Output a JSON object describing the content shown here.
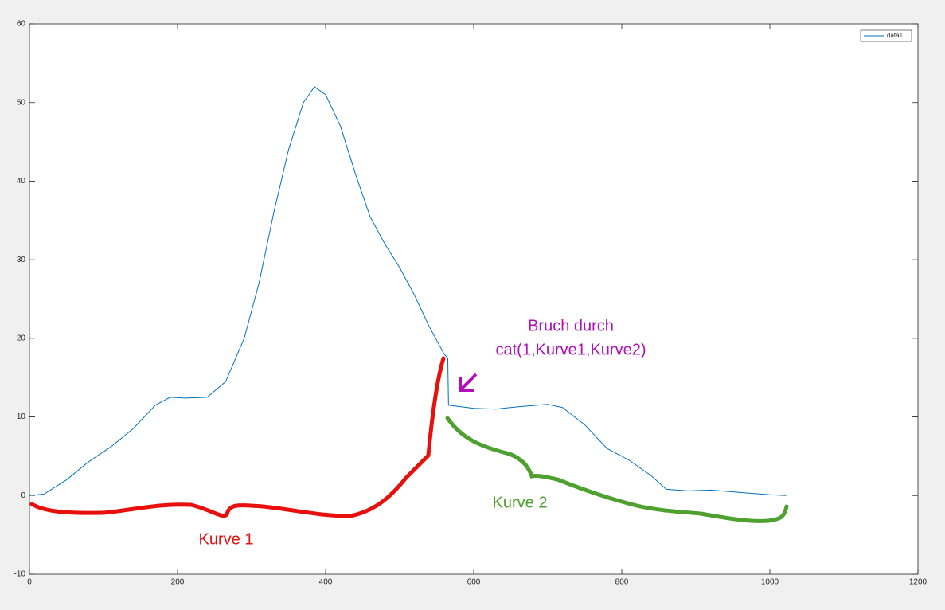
{
  "chart_data": {
    "type": "line",
    "x": [
      0,
      20,
      50,
      80,
      110,
      140,
      170,
      190,
      210,
      240,
      265,
      290,
      310,
      330,
      350,
      370,
      385,
      400,
      420,
      440,
      460,
      480,
      500,
      520,
      540,
      560,
      565,
      566,
      600,
      630,
      660,
      700,
      720,
      750,
      780,
      810,
      840,
      860,
      890,
      920,
      960,
      1000,
      1022
    ],
    "series": [
      {
        "name": "data1",
        "color": "#0072bd",
        "values": [
          0,
          0.2,
          2,
          4.3,
          6.2,
          8.5,
          11.5,
          12.5,
          12.4,
          12.5,
          14.5,
          20,
          27,
          36,
          44,
          50,
          52,
          51,
          47,
          41,
          35.5,
          32,
          29,
          25.5,
          21.5,
          18,
          17.5,
          11.5,
          11.1,
          11,
          11.3,
          11.6,
          11.2,
          9,
          6,
          4.5,
          2.5,
          0.8,
          0.6,
          0.7,
          0.4,
          0.1,
          0
        ]
      }
    ],
    "xlim": [
      0,
      1200
    ],
    "xticks": [
      0,
      200,
      400,
      600,
      800,
      1000,
      1200
    ],
    "ylim": [
      -10,
      60
    ],
    "yticks": [
      -10,
      0,
      10,
      20,
      30,
      40,
      50,
      60
    ],
    "legend": "top-right",
    "annotations": [
      "Bruch durch",
      "cat(1,Kurve1,Kurve2)",
      "Kurve 1",
      "Kurve 2"
    ]
  }
}
